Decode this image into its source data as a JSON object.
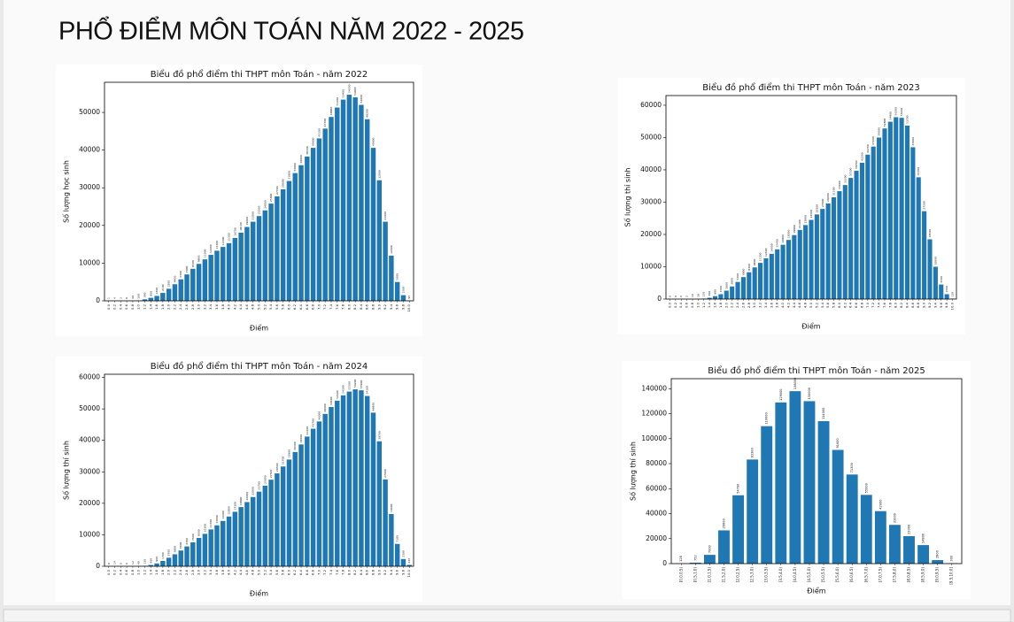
{
  "title": "PHỔ ĐIỂM MÔN TOÁN NĂM 2022 - 2025",
  "chart_data": [
    {
      "type": "bar",
      "title": "Biểu đồ phổ điểm thi THPT môn Toán - năm 2022",
      "x_label": "Điểm",
      "y_label": "Số lượng học sinh",
      "color": "#1f77b4",
      "categories": [
        "0.0",
        "0.2",
        "0.4",
        "0.6",
        "0.8",
        "1.0",
        "1.2",
        "1.4",
        "1.6",
        "1.8",
        "2.0",
        "2.2",
        "2.4",
        "2.6",
        "2.8",
        "3.0",
        "3.2",
        "3.4",
        "3.6",
        "3.8",
        "4.0",
        "4.2",
        "4.4",
        "4.6",
        "4.8",
        "5.0",
        "5.2",
        "5.4",
        "5.6",
        "5.8",
        "6.0",
        "6.2",
        "6.4",
        "6.6",
        "6.8",
        "7.0",
        "7.2",
        "7.4",
        "7.6",
        "7.8",
        "8.0",
        "8.2",
        "8.4",
        "8.6",
        "8.8",
        "9.0",
        "9.2",
        "9.4",
        "9.6",
        "9.8",
        "10.0"
      ],
      "values": [
        1,
        4,
        3,
        9,
        40,
        100,
        390,
        800,
        1300,
        2100,
        3200,
        4400,
        5700,
        7000,
        8500,
        9800,
        11000,
        12200,
        13300,
        14300,
        15300,
        16700,
        18100,
        19600,
        21000,
        22500,
        24000,
        25800,
        27700,
        29600,
        31800,
        33900,
        36000,
        38300,
        40600,
        43100,
        45700,
        48800,
        51300,
        53400,
        54700,
        54000,
        52000,
        48200,
        40600,
        32000,
        21000,
        12000,
        5000,
        1500,
        95
      ],
      "ylim": [
        0,
        58000
      ],
      "yticks": [
        0,
        10000,
        20000,
        30000,
        40000,
        50000
      ]
    },
    {
      "type": "bar",
      "title": "Biểu đồ phổ điểm thi THPT môn Toán - năm 2023",
      "x_label": "Điểm",
      "y_label": "Số lượng thí sinh",
      "color": "#1f77b4",
      "categories": [
        "0.0",
        "0.2",
        "0.4",
        "0.6",
        "0.8",
        "1.0",
        "1.2",
        "1.4",
        "1.6",
        "1.8",
        "2.0",
        "2.2",
        "2.4",
        "2.6",
        "2.8",
        "3.0",
        "3.2",
        "3.4",
        "3.6",
        "3.8",
        "4.0",
        "4.2",
        "4.4",
        "4.6",
        "4.8",
        "5.0",
        "5.2",
        "5.4",
        "5.6",
        "5.8",
        "6.0",
        "6.2",
        "6.4",
        "6.6",
        "6.8",
        "7.0",
        "7.2",
        "7.4",
        "7.6",
        "7.8",
        "8.0",
        "8.2",
        "8.4",
        "8.6",
        "8.8",
        "9.0",
        "9.2",
        "9.4",
        "9.6",
        "9.8",
        "10.0"
      ],
      "values": [
        0,
        0,
        0,
        2,
        10,
        30,
        150,
        400,
        900,
        1500,
        2600,
        3900,
        5300,
        6800,
        8300,
        9800,
        11200,
        12600,
        14000,
        15400,
        16800,
        18300,
        19800,
        21400,
        22900,
        24500,
        26200,
        27900,
        29600,
        31500,
        33400,
        35300,
        37500,
        39700,
        42200,
        44700,
        47200,
        50000,
        52800,
        54900,
        56300,
        56100,
        53700,
        47000,
        37700,
        27200,
        18500,
        10000,
        4500,
        1500,
        120
      ],
      "ylim": [
        0,
        63000
      ],
      "yticks": [
        0,
        10000,
        20000,
        30000,
        40000,
        50000,
        60000
      ]
    },
    {
      "type": "bar",
      "title": "Biểu đồ phổ điểm thi THPT môn Toán - năm 2024",
      "x_label": "Điểm",
      "y_label": "Số lượng thí sinh",
      "color": "#1f77b4",
      "categories": [
        "0.0",
        "0.2",
        "0.4",
        "0.6",
        "0.8",
        "1.0",
        "1.2",
        "1.4",
        "1.6",
        "1.8",
        "2.0",
        "2.2",
        "2.4",
        "2.6",
        "2.8",
        "3.0",
        "3.2",
        "3.4",
        "3.6",
        "3.8",
        "4.0",
        "4.2",
        "4.4",
        "4.6",
        "4.8",
        "5.0",
        "5.2",
        "5.4",
        "5.6",
        "5.8",
        "6.0",
        "6.2",
        "6.4",
        "6.6",
        "6.8",
        "7.0",
        "7.2",
        "7.4",
        "7.6",
        "7.8",
        "8.0",
        "8.2",
        "8.4",
        "8.6",
        "8.8",
        "9.0",
        "9.2",
        "9.4",
        "9.6",
        "9.8",
        "10.0"
      ],
      "values": [
        0,
        14,
        0,
        6,
        12,
        40,
        130,
        400,
        900,
        1700,
        2700,
        3800,
        5000,
        6300,
        7600,
        9000,
        10300,
        11700,
        13000,
        14400,
        15800,
        17300,
        18800,
        20400,
        22000,
        23700,
        25600,
        27500,
        29500,
        31700,
        33900,
        36300,
        38700,
        41200,
        43700,
        46000,
        48400,
        50600,
        52600,
        54300,
        55500,
        56200,
        55900,
        54100,
        48800,
        39700,
        27600,
        16600,
        7100,
        2300,
        430
      ],
      "ylim": [
        0,
        61000
      ],
      "yticks": [
        0,
        10000,
        20000,
        30000,
        40000,
        50000,
        60000
      ]
    },
    {
      "type": "bar",
      "title": "Biểu đồ phổ điểm thi THPT môn Toán - năm 2025",
      "x_label": "Điểm",
      "y_label": "Số lượng thí sinh",
      "color": "#1f77b4",
      "categories": [
        "[0.0,0.5)",
        "[0.5,1.0)",
        "[1.0,1.5)",
        "[1.5,2.0)",
        "[2.0,2.5)",
        "[2.5,3.0)",
        "[3.0,3.5)",
        "[3.5,4.0)",
        "[4.0,4.5)",
        "[4.5,5.0)",
        "[5.0,5.5)",
        "[5.5,6.0)",
        "[6.0,6.5)",
        "[6.5,7.0)",
        "[7.0,7.5)",
        "[7.5,8.0)",
        "[8.0,8.5)",
        "[8.5,9.0)",
        "[9.0,9.5)",
        "[9.5,10.0]"
      ],
      "values": [
        128,
        752,
        7000,
        26600,
        54700,
        83300,
        110000,
        129000,
        138000,
        130000,
        114000,
        91000,
        71300,
        55000,
        42000,
        31000,
        22000,
        14800,
        2800,
        300
      ],
      "ylim": [
        0,
        148000
      ],
      "yticks": [
        0,
        20000,
        40000,
        60000,
        80000,
        100000,
        120000,
        140000
      ]
    }
  ]
}
